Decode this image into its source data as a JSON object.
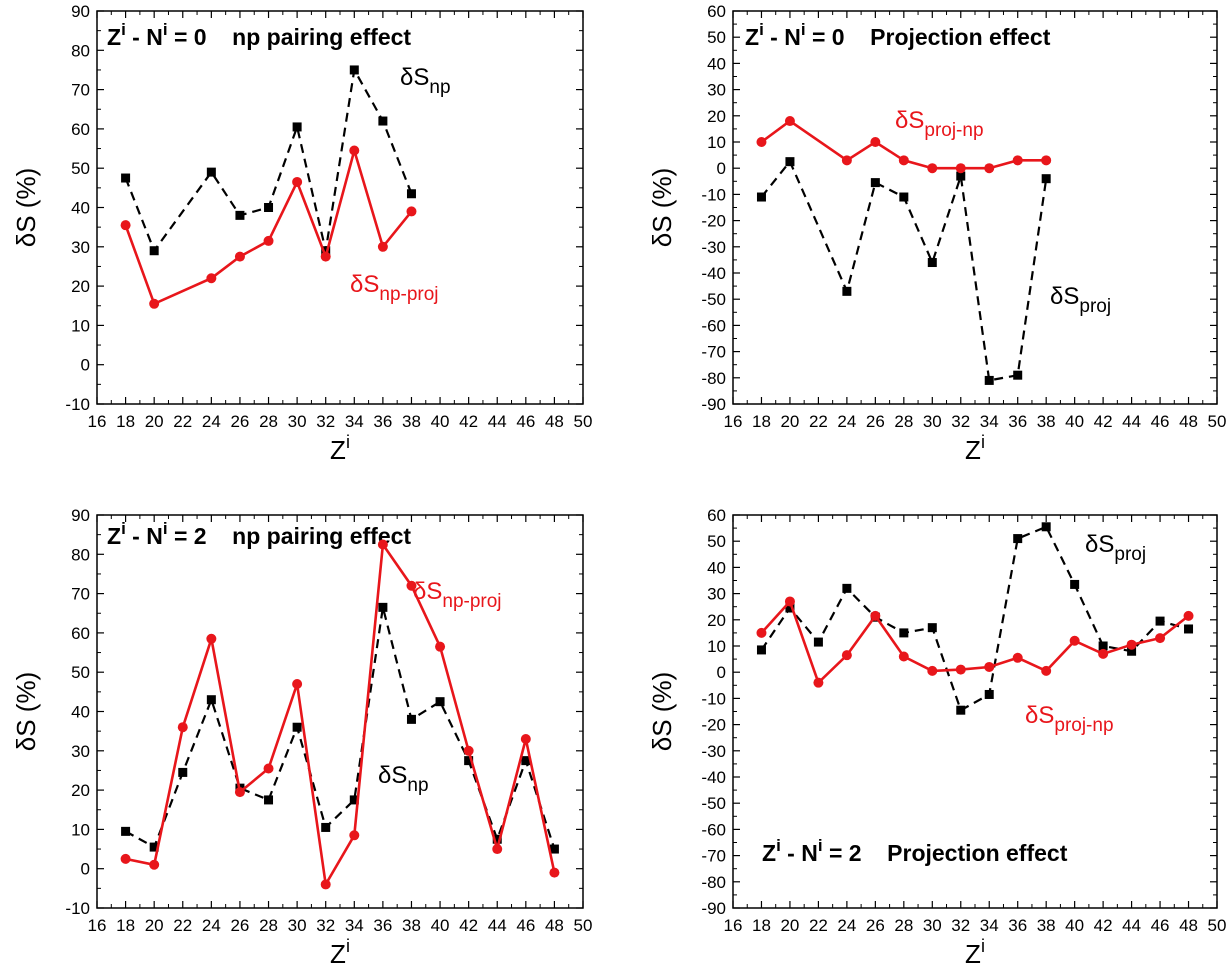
{
  "figure": {
    "super_ylabel": "δS (%)",
    "super_xlabel": "Zⁱ"
  },
  "colors": {
    "red_series": "#e8161b",
    "black_series": "#000000",
    "axis": "#000000",
    "background": "#ffffff"
  },
  "chart_data": [
    {
      "type": "line",
      "title_main": "Z",
      "title_sup": "i",
      "title_mid": " - N",
      "title_sup2": "i",
      "title_end": " = 0    np pairing effect",
      "ylabel": "δS (%)",
      "xlabel_main": "Z",
      "xlabel_sup": "i",
      "xlim": [
        16,
        50
      ],
      "ylim": [
        -10,
        90
      ],
      "xticks": [
        "16",
        "18",
        "20",
        "22",
        "24",
        "26",
        "28",
        "30",
        "32",
        "34",
        "36",
        "38",
        "40",
        "42",
        "44",
        "46",
        "48",
        "50"
      ],
      "yticks": [
        "-10",
        "0",
        "10",
        "20",
        "30",
        "40",
        "50",
        "60",
        "70",
        "80",
        "90"
      ],
      "series": [
        {
          "name_main": "δS",
          "name_sub": "np",
          "color": "#000000",
          "dash": true,
          "marker": "square",
          "x": [
            18,
            20,
            24,
            26,
            28,
            30,
            32,
            34,
            36,
            38
          ],
          "values": [
            47.5,
            29,
            49,
            38,
            40,
            60.5,
            29,
            75,
            62,
            43.5
          ]
        },
        {
          "name_main": "δS",
          "name_sub": "np-proj",
          "color": "#e8161b",
          "dash": false,
          "marker": "circle",
          "x": [
            18,
            20,
            24,
            26,
            28,
            30,
            32,
            34,
            36,
            38
          ],
          "values": [
            35.5,
            15.5,
            22,
            27.5,
            31.5,
            46.5,
            27.5,
            54.5,
            30,
            39
          ]
        }
      ]
    },
    {
      "type": "line",
      "title_main": "Z",
      "title_sup": "i",
      "title_mid": " - N",
      "title_sup2": "i",
      "title_end": " = 0    Projection effect",
      "ylabel": "δS (%)",
      "xlabel_main": "Z",
      "xlabel_sup": "i",
      "xlim": [
        16,
        50
      ],
      "ylim": [
        -90,
        60
      ],
      "xticks": [
        "16",
        "18",
        "20",
        "22",
        "24",
        "26",
        "28",
        "30",
        "32",
        "34",
        "36",
        "38",
        "40",
        "42",
        "44",
        "46",
        "48",
        "50"
      ],
      "yticks": [
        "-90",
        "-80",
        "-70",
        "-60",
        "-50",
        "-40",
        "-30",
        "-20",
        "-10",
        "0",
        "10",
        "20",
        "30",
        "40",
        "50",
        "60"
      ],
      "series": [
        {
          "name_main": "δS",
          "name_sub": "proj",
          "color": "#000000",
          "dash": true,
          "marker": "square",
          "x": [
            18,
            20,
            24,
            26,
            28,
            30,
            32,
            34,
            36,
            38
          ],
          "values": [
            -11,
            2.5,
            -47,
            -5.5,
            -11,
            -36,
            -3,
            -81,
            -79,
            -4
          ]
        },
        {
          "name_main": "δS",
          "name_sub": "proj-np",
          "color": "#e8161b",
          "dash": false,
          "marker": "circle",
          "x": [
            18,
            20,
            24,
            26,
            28,
            30,
            32,
            34,
            36,
            38
          ],
          "values": [
            10,
            18,
            3,
            10,
            3,
            0,
            0,
            0,
            3,
            3
          ]
        }
      ]
    },
    {
      "type": "line",
      "title_main": "Z",
      "title_sup": "i",
      "title_mid": " - N",
      "title_sup2": "i",
      "title_end": " = 2    np pairing effect",
      "ylabel": "δS (%)",
      "xlabel_main": "Z",
      "xlabel_sup": "i",
      "xlim": [
        16,
        50
      ],
      "ylim": [
        -10,
        90
      ],
      "xticks": [
        "16",
        "18",
        "20",
        "22",
        "24",
        "26",
        "28",
        "30",
        "32",
        "34",
        "36",
        "38",
        "40",
        "42",
        "44",
        "46",
        "48",
        "50"
      ],
      "yticks": [
        "-10",
        "0",
        "10",
        "20",
        "30",
        "40",
        "50",
        "60",
        "70",
        "80",
        "90"
      ],
      "series": [
        {
          "name_main": "δS",
          "name_sub": "np",
          "color": "#000000",
          "dash": true,
          "marker": "square",
          "x": [
            18,
            20,
            22,
            24,
            26,
            28,
            30,
            32,
            34,
            36,
            38,
            40,
            42,
            44,
            46,
            48
          ],
          "values": [
            9.5,
            5.5,
            24.5,
            43,
            20.5,
            17.5,
            36,
            10.5,
            17.5,
            66.5,
            38,
            42.5,
            27.5,
            7.5,
            27.5,
            5
          ]
        },
        {
          "name_main": "δS",
          "name_sub": "np-proj",
          "color": "#e8161b",
          "dash": false,
          "marker": "circle",
          "x": [
            18,
            20,
            22,
            24,
            26,
            28,
            30,
            32,
            34,
            36,
            38,
            40,
            42,
            44,
            46,
            48
          ],
          "values": [
            2.5,
            1,
            36,
            58.5,
            19.5,
            25.5,
            47,
            -4,
            8.5,
            82.5,
            72,
            56.5,
            30,
            5,
            33,
            -1
          ]
        }
      ]
    },
    {
      "type": "line",
      "title_main": "Z",
      "title_sup": "i",
      "title_mid": " - N",
      "title_sup2": "i",
      "title_end": " = 2    Projection effect",
      "ylabel": "δS (%)",
      "xlabel_main": "Z",
      "xlabel_sup": "i",
      "xlim": [
        16,
        50
      ],
      "ylim": [
        -90,
        60
      ],
      "xticks": [
        "16",
        "18",
        "20",
        "22",
        "24",
        "26",
        "28",
        "30",
        "32",
        "34",
        "36",
        "38",
        "40",
        "42",
        "44",
        "46",
        "48",
        "50"
      ],
      "yticks": [
        "-90",
        "-80",
        "-70",
        "-60",
        "-50",
        "-40",
        "-30",
        "-20",
        "-10",
        "0",
        "10",
        "20",
        "30",
        "40",
        "50",
        "60"
      ],
      "series": [
        {
          "name_main": "δS",
          "name_sub": "proj",
          "color": "#000000",
          "dash": true,
          "marker": "square",
          "x": [
            18,
            20,
            22,
            24,
            26,
            28,
            30,
            32,
            34,
            36,
            38,
            40,
            42,
            44,
            46,
            48
          ],
          "values": [
            8.5,
            24.5,
            11.5,
            32,
            21,
            15,
            17,
            -14.5,
            -8.5,
            51,
            55.5,
            33.5,
            10,
            8,
            19.5,
            16.5
          ]
        },
        {
          "name_main": "δS",
          "name_sub": "proj-np",
          "color": "#e8161b",
          "dash": false,
          "marker": "circle",
          "x": [
            18,
            20,
            22,
            24,
            26,
            28,
            30,
            32,
            34,
            36,
            38,
            40,
            42,
            44,
            46,
            48
          ],
          "values": [
            15,
            27,
            -4,
            6.5,
            21.5,
            6,
            0.5,
            1,
            2,
            5.5,
            0.5,
            12,
            7,
            10.5,
            13,
            21.5
          ]
        }
      ]
    }
  ]
}
